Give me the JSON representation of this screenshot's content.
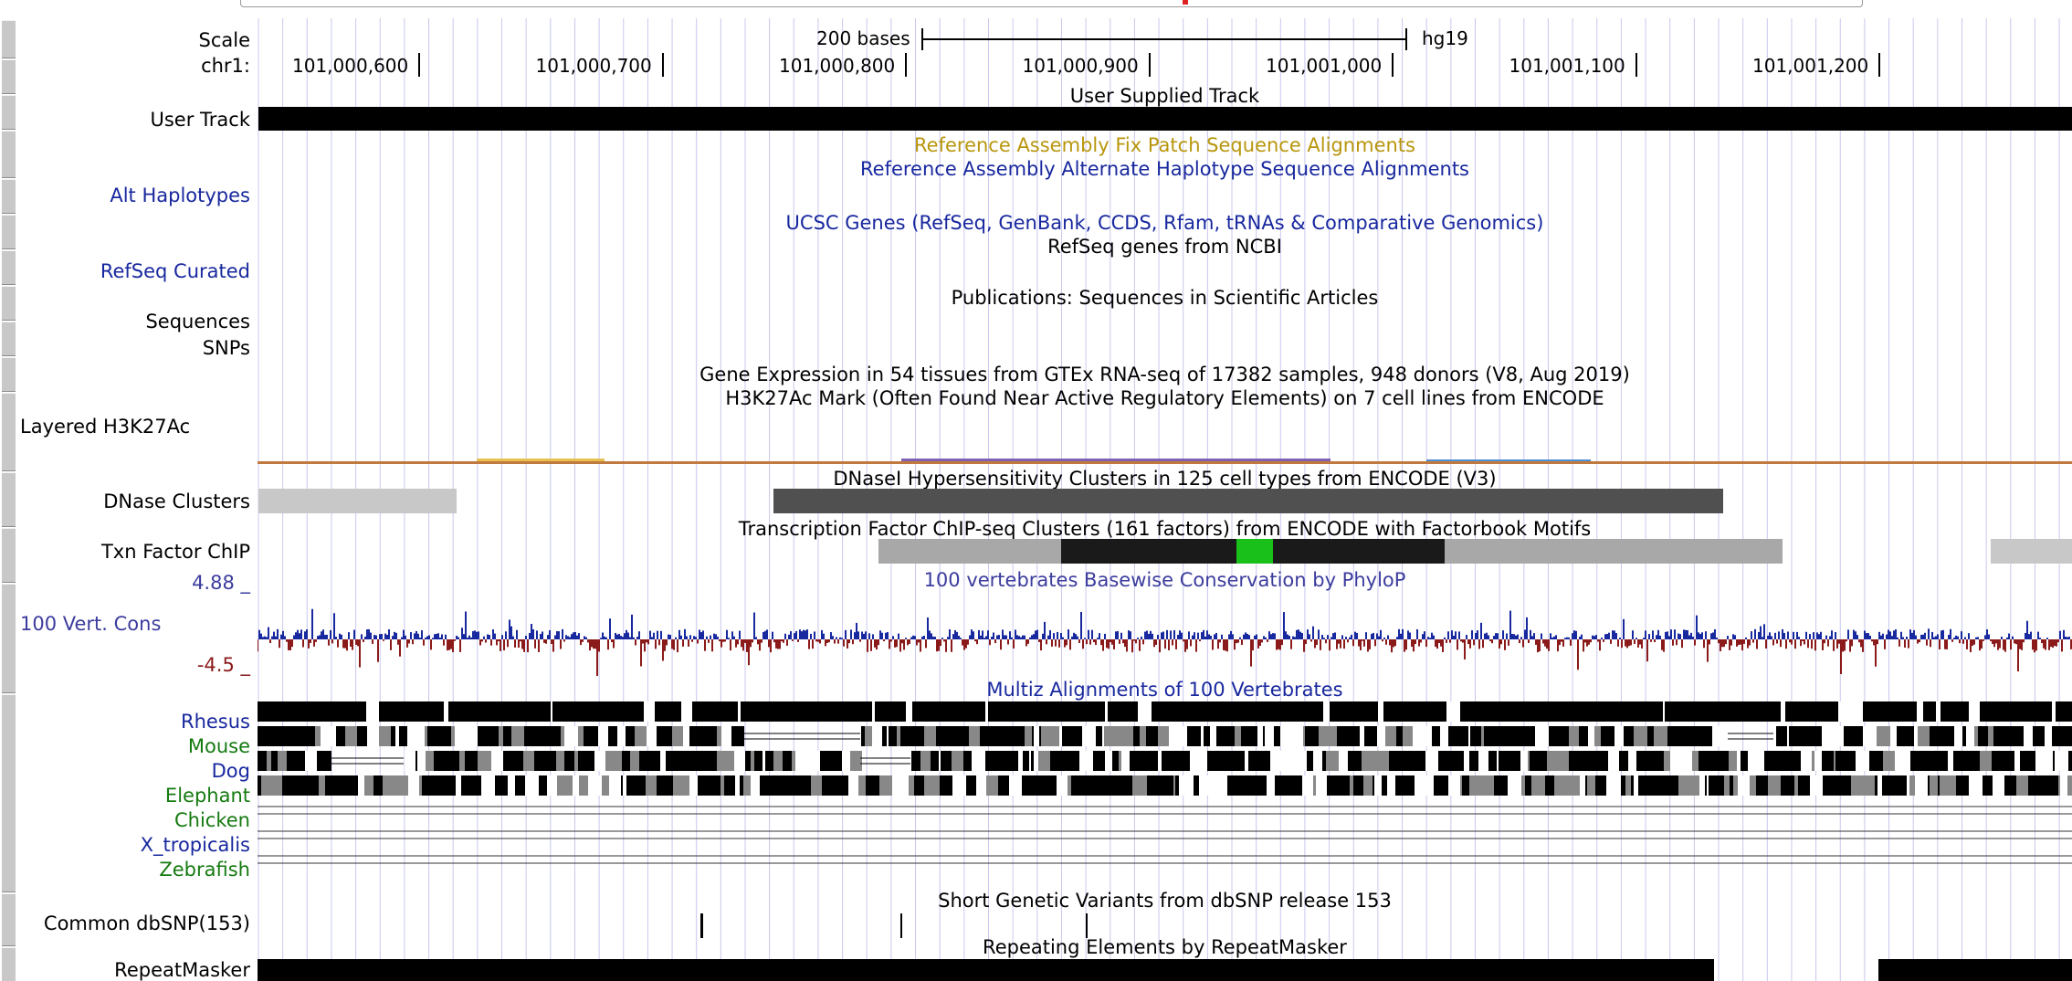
{
  "ruler": {
    "scale_label": "Scale",
    "chrom_label": "chr1:",
    "scale_bar_label": "200 bases",
    "assembly": "hg19",
    "positions": [
      "101,000,600",
      "101,000,700",
      "101,000,800",
      "101,000,900",
      "101,001,000",
      "101,001,100",
      "101,001,200"
    ]
  },
  "left_labels": {
    "user_track": "User Track",
    "alt_haplotypes": "Alt Haplotypes",
    "refseq_curated": "RefSeq Curated",
    "sequences": "Sequences",
    "snps": "SNPs",
    "layered_h3k27ac": "Layered H3K27Ac",
    "dnase_clusters": "DNase Clusters",
    "txn_factor_chip": "Txn Factor ChIP",
    "cons_max": "4.88 _",
    "cons_name": "100 Vert. Cons",
    "cons_min": "-4.5 _",
    "species": [
      "Rhesus",
      "Mouse",
      "Dog",
      "Elephant",
      "Chicken",
      "X_tropicalis",
      "Zebrafish"
    ],
    "common_dbsnp": "Common dbSNP(153)",
    "repeatmasker": "RepeatMasker"
  },
  "track_titles": {
    "user_supplied": "User Supplied Track",
    "fix_patch": "Reference Assembly Fix Patch Sequence Alignments",
    "alt_haplotype": "Reference Assembly Alternate Haplotype Sequence Alignments",
    "ucsc_genes": "UCSC Genes (RefSeq, GenBank, CCDS, Rfam, tRNAs & Comparative Genomics)",
    "refseq_ncbi": "RefSeq genes from NCBI",
    "publications": "Publications: Sequences in Scientific Articles",
    "gtex": "Gene Expression in 54 tissues from GTEx RNA-seq of 17382 samples, 948 donors (V8, Aug 2019)",
    "h3k27ac": "H3K27Ac Mark (Often Found Near Active Regulatory Elements) on 7 cell lines from ENCODE",
    "dnase": "DNaseI Hypersensitivity Clusters in 125 cell types from ENCODE (V3)",
    "tfbs": "Transcription Factor ChIP-seq Clusters (161 factors) from ENCODE with Factorbook Motifs",
    "phylop": "100 vertebrates Basewise Conservation by PhyloP",
    "multiz": "Multiz Alignments of 100 Vertebrates",
    "dbsnp": "Short Genetic Variants from dbSNP release 153",
    "repeats": "Repeating Elements by RepeatMasker"
  },
  "colors": {
    "fix_patch": "#b8960c",
    "blue_title": "#18289e",
    "species_rhesus": "#18289e",
    "species_green": "#157a10",
    "cons_pos": "#18289e",
    "cons_neg": "#8b1a1a",
    "tfbs_motif": "#19c019"
  }
}
